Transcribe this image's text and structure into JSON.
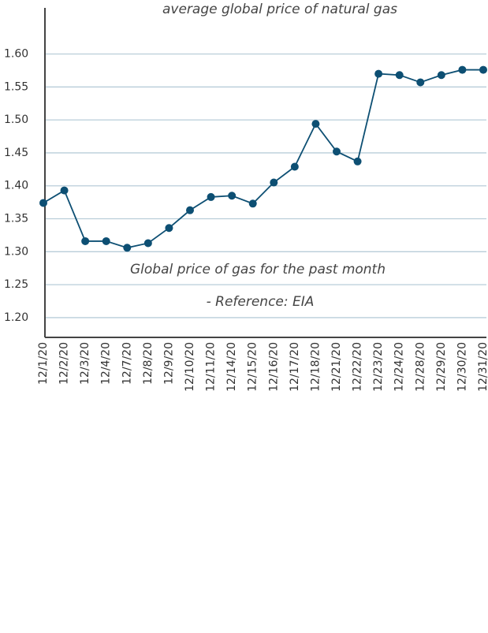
{
  "chart_data": {
    "type": "line",
    "title": "average global price of natural gas",
    "annotations": [
      "Global price of gas for the past month",
      "- Reference: EIA"
    ],
    "categories": [
      "12/1/20",
      "12/2/20",
      "12/3/20",
      "12/4/20",
      "12/7/20",
      "12/8/20",
      "12/9/20",
      "12/10/20",
      "12/11/20",
      "12/14/20",
      "12/15/20",
      "12/16/20",
      "12/17/20",
      "12/18/20",
      "12/21/20",
      "12/22/20",
      "12/23/20",
      "12/24/20",
      "12/28/20",
      "12/29/20",
      "12/30/20",
      "12/31/20"
    ],
    "values": [
      1.374,
      1.393,
      1.316,
      1.316,
      1.306,
      1.313,
      1.336,
      1.363,
      1.383,
      1.385,
      1.373,
      1.405,
      1.429,
      1.494,
      1.452,
      1.437,
      1.57,
      1.568,
      1.557,
      1.568,
      1.576,
      1.576
    ],
    "color": "#0d4f73",
    "ylim": [
      1.17,
      1.67
    ],
    "yticks": [
      {
        "value": 1.2,
        "label": "1.20"
      },
      {
        "value": 1.25,
        "label": "1.25"
      },
      {
        "value": 1.3,
        "label": "1.30"
      },
      {
        "value": 1.35,
        "label": "1.35"
      },
      {
        "value": 1.4,
        "label": "1.40"
      },
      {
        "value": 1.45,
        "label": "1.45"
      },
      {
        "value": 1.5,
        "label": "1.50"
      },
      {
        "value": 1.55,
        "label": "1.55"
      },
      {
        "value": 1.6,
        "label": "1.60"
      }
    ],
    "grid": true
  }
}
